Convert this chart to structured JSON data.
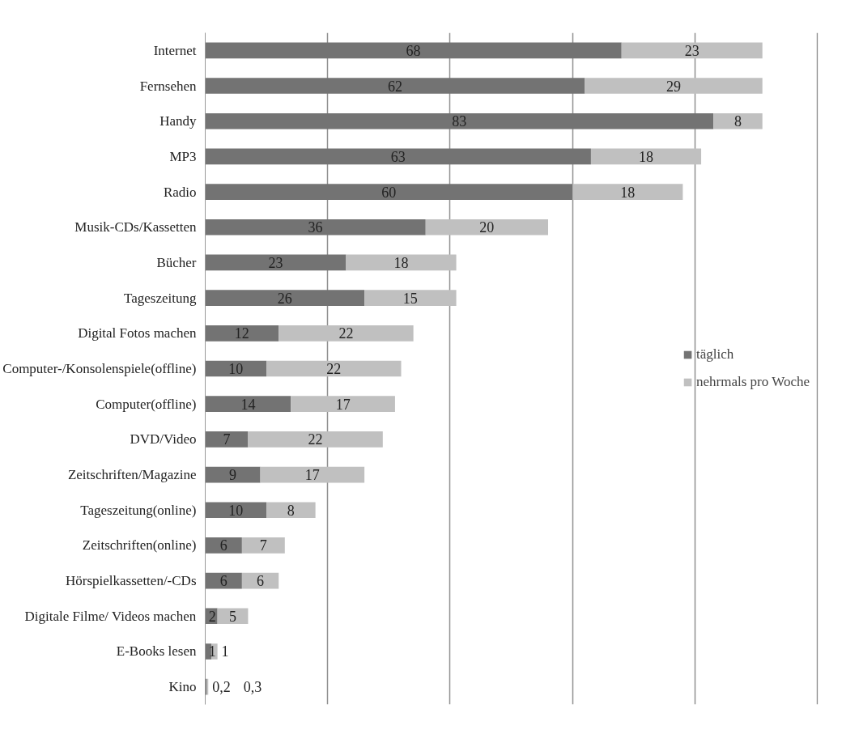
{
  "chart_data": {
    "type": "bar",
    "orientation": "horizontal",
    "stacked": true,
    "categories": [
      "Internet",
      "Fernsehen",
      "Handy",
      "MP3",
      "Radio",
      "Musik-CDs/Kassetten",
      "Bücher",
      "Tageszeitung",
      "Digital Fotos machen",
      "Computer-/Konsolenspiele(offline)",
      "Computer(offline)",
      "DVD/Video",
      "Zeitschriften/Magazine",
      "Tageszeitung(online)",
      "Zeitschriften(online)",
      "Hörspielkassetten/-CDs",
      "Digitale Filme/ Videos machen",
      "E-Books lesen",
      "Kino"
    ],
    "series": [
      {
        "name": "täglich",
        "color": "#737373",
        "values": [
          68,
          62,
          83,
          63,
          60,
          36,
          23,
          26,
          12,
          10,
          14,
          7,
          9,
          10,
          6,
          6,
          2,
          1,
          0.2
        ],
        "value_labels": [
          "68",
          "62",
          "83",
          "63",
          "60",
          "36",
          "23",
          "26",
          "12",
          "10",
          "14",
          "7",
          "9",
          "10",
          "6",
          "6",
          "2",
          "1",
          "0,2"
        ]
      },
      {
        "name": "nehrmals pro Woche",
        "color": "#c0c0c0",
        "values": [
          23,
          29,
          8,
          18,
          18,
          20,
          18,
          15,
          22,
          22,
          17,
          22,
          17,
          8,
          7,
          6,
          5,
          1,
          0.3
        ],
        "value_labels": [
          "23",
          "29",
          "8",
          "18",
          "18",
          "20",
          "18",
          "15",
          "22",
          "22",
          "17",
          "22",
          "17",
          "8",
          "7",
          "6",
          "5",
          "1",
          "0,3"
        ]
      }
    ],
    "grid": "x",
    "legend": "right",
    "tick_labels": "y"
  }
}
